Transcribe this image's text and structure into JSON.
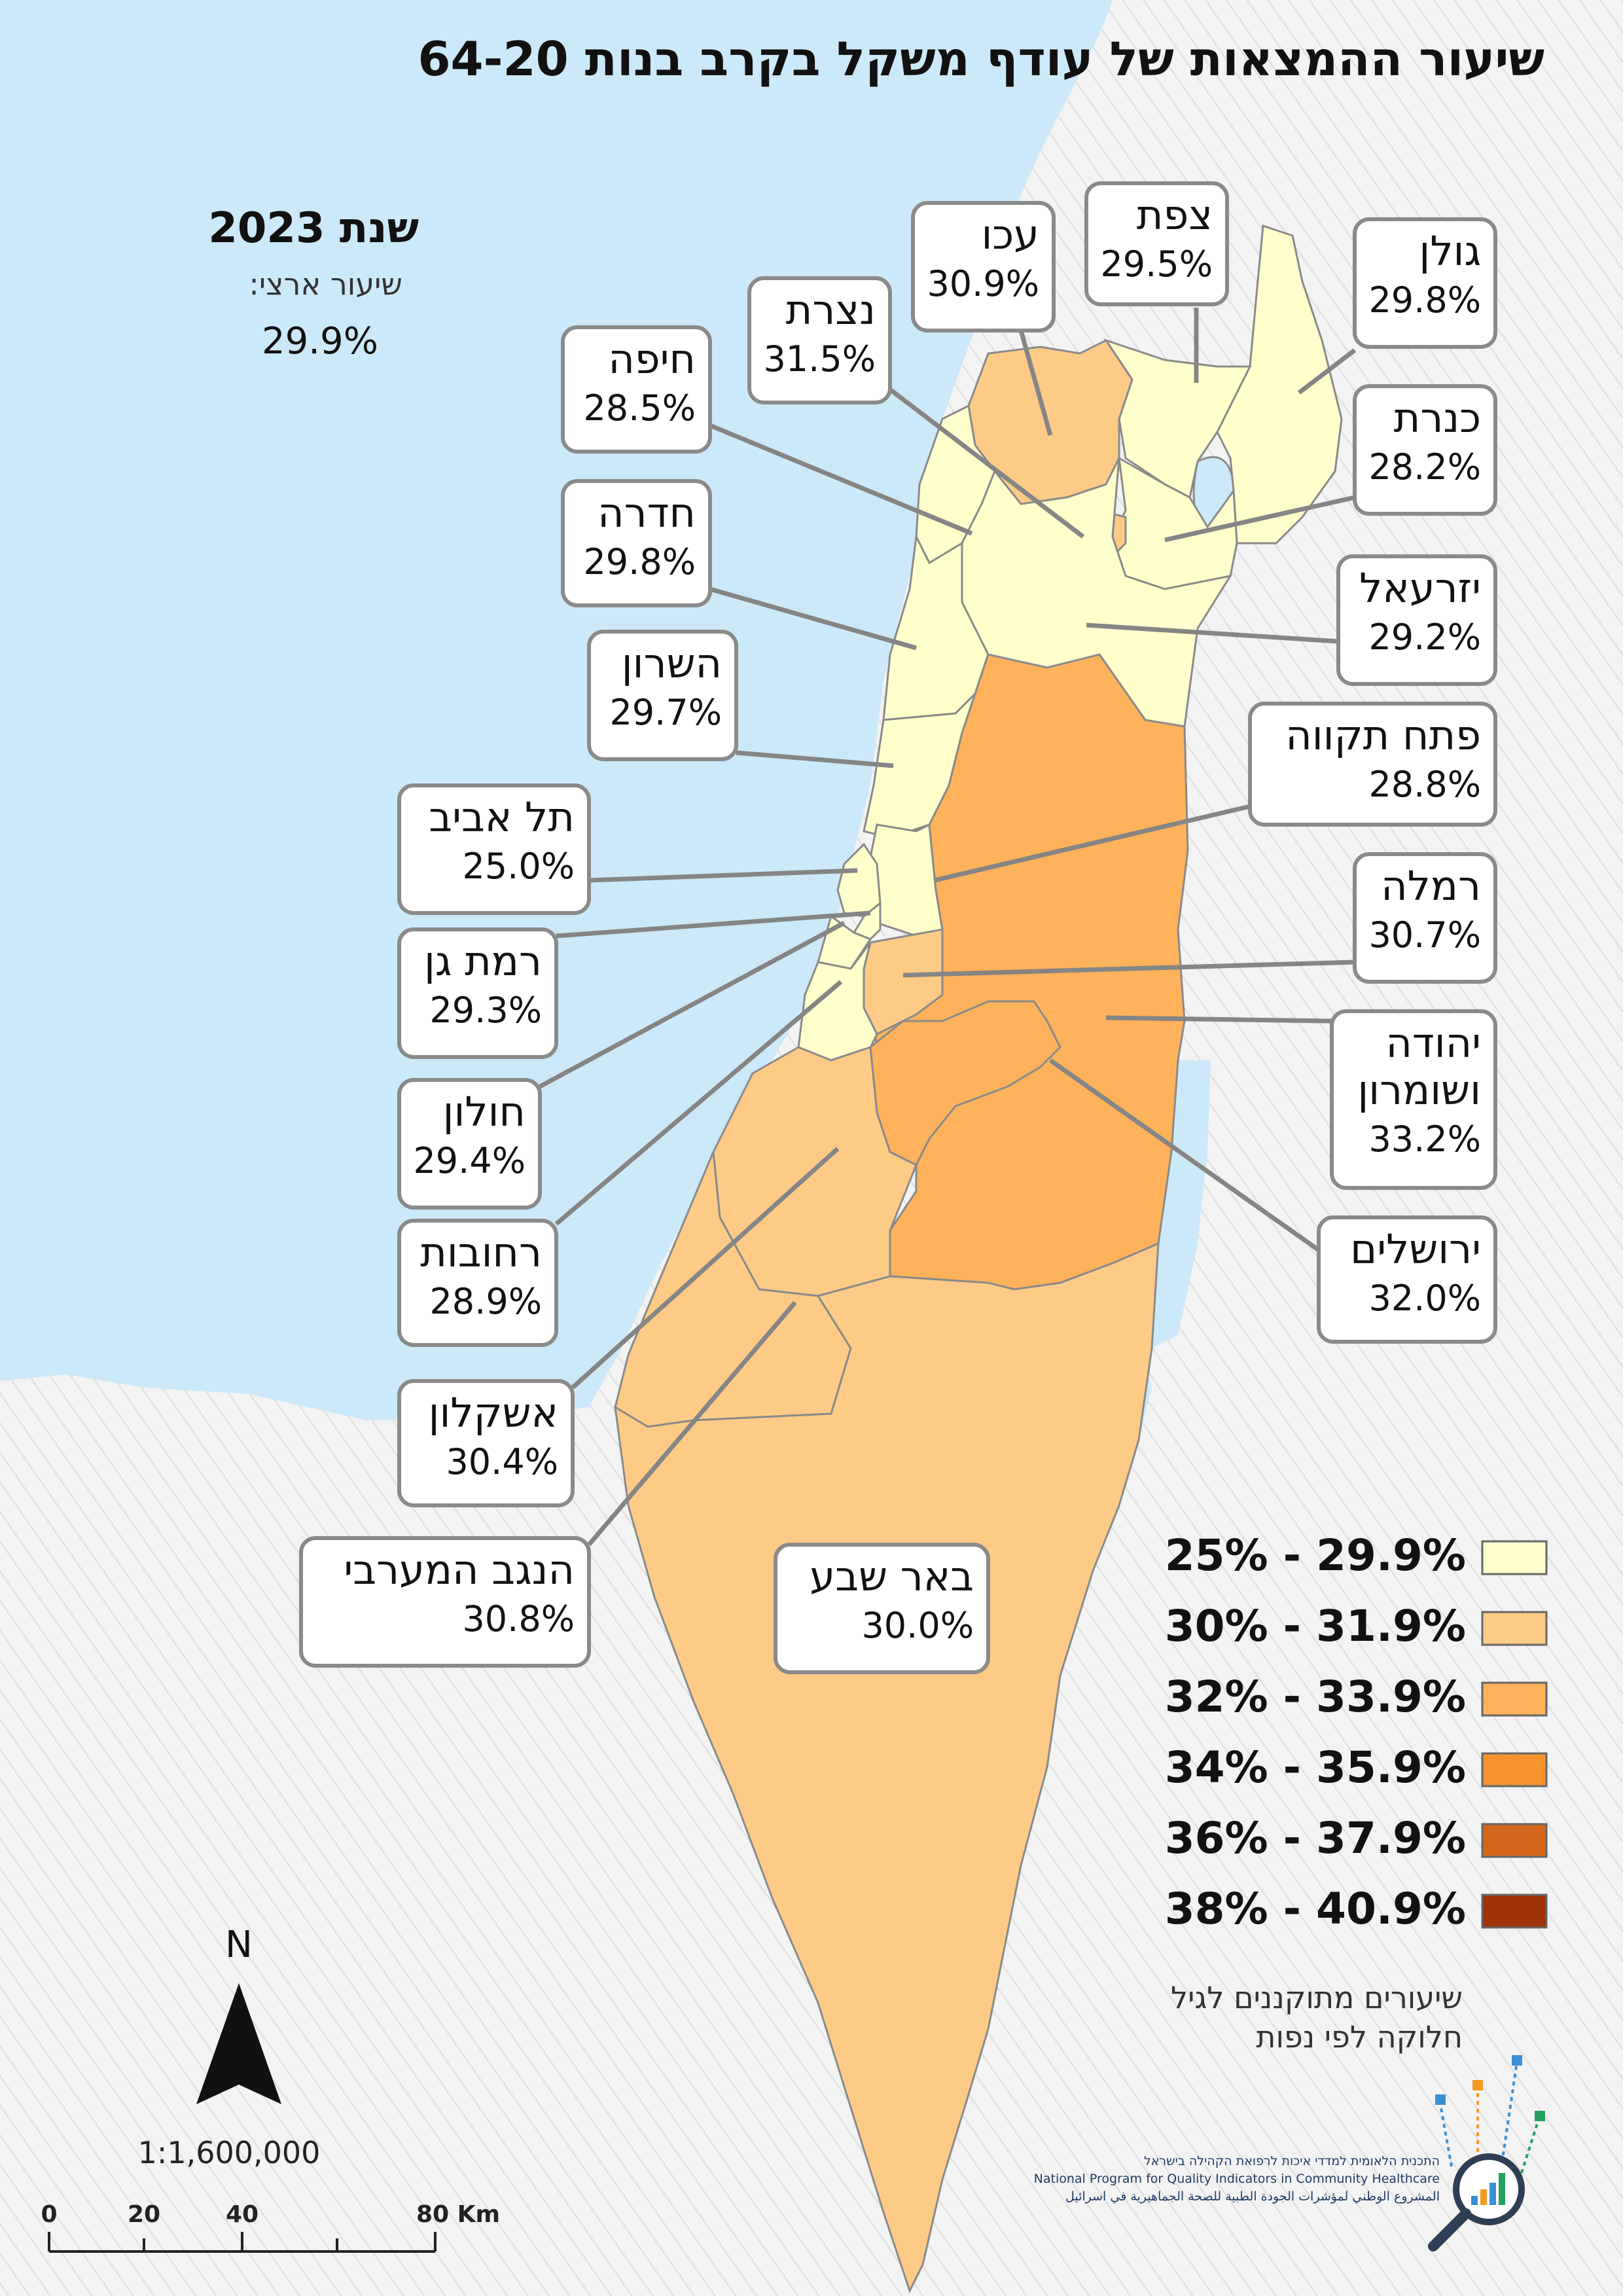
{
  "title": "שיעור ההמצאות של עודף משקל בקרב בנות 64-20",
  "year_label": "שנת 2023",
  "national_label": "שיעור ארצי:",
  "national_value": "29.9%",
  "districts": [
    {
      "id": "golan",
      "name": "גולן",
      "value": "29.8%",
      "rate": 29.8
    },
    {
      "id": "safed",
      "name": "צפת",
      "value": "29.5%",
      "rate": 29.5
    },
    {
      "id": "acre",
      "name": "עכו",
      "value": "30.9%",
      "rate": 30.9
    },
    {
      "id": "nazareth",
      "name": "נצרת",
      "value": "31.5%",
      "rate": 31.5
    },
    {
      "id": "haifa",
      "name": "חיפה",
      "value": "28.5%",
      "rate": 28.5
    },
    {
      "id": "kinneret",
      "name": "כנרת",
      "value": "28.2%",
      "rate": 28.2
    },
    {
      "id": "hadera",
      "name": "חדרה",
      "value": "29.8%",
      "rate": 29.8
    },
    {
      "id": "jezreel",
      "name": "יזרעאל",
      "value": "29.2%",
      "rate": 29.2
    },
    {
      "id": "sharon",
      "name": "השרון",
      "value": "29.7%",
      "rate": 29.7
    },
    {
      "id": "petah-tikva",
      "name": "פתח תקווה",
      "value": "28.8%",
      "rate": 28.8
    },
    {
      "id": "tel-aviv",
      "name": "תל אביב",
      "value": "25.0%",
      "rate": 25.0
    },
    {
      "id": "ramla",
      "name": "רמלה",
      "value": "30.7%",
      "rate": 30.7
    },
    {
      "id": "ramat-gan",
      "name": "רמת גן",
      "value": "29.3%",
      "rate": 29.3
    },
    {
      "id": "judea-samaria",
      "name": "יהודה ושומרון",
      "name_lines": [
        "יהודה",
        "ושומרון"
      ],
      "value": "33.2%",
      "rate": 33.2
    },
    {
      "id": "holon",
      "name": "חולון",
      "value": "29.4%",
      "rate": 29.4
    },
    {
      "id": "jerusalem",
      "name": "ירושלים",
      "value": "32.0%",
      "rate": 32.0
    },
    {
      "id": "rehovot",
      "name": "רחובות",
      "value": "28.9%",
      "rate": 28.9
    },
    {
      "id": "ashkelon",
      "name": "אשקלון",
      "value": "30.4%",
      "rate": 30.4
    },
    {
      "id": "western-negev",
      "name": "הנגב המערבי",
      "value": "30.8%",
      "rate": 30.8
    },
    {
      "id": "beersheba",
      "name": "באר שבע",
      "value": "30.0%",
      "rate": 30.0
    }
  ],
  "legend": [
    {
      "label": "25% - 29.9%",
      "color": "#ffffcc"
    },
    {
      "label": "30% - 31.9%",
      "color": "#fecb87"
    },
    {
      "label": "32% - 33.9%",
      "color": "#fdb25b"
    },
    {
      "label": "34% - 35.9%",
      "color": "#f7932e"
    },
    {
      "label": "36% - 37.9%",
      "color": "#d4661c"
    },
    {
      "label": "38% - 40.9%",
      "color": "#9e3305"
    }
  ],
  "note_lines": [
    "שיעורים מתוקננים לגיל",
    "חלוקה לפי נפות"
  ],
  "north_arrow_label": "N",
  "scale_text": "1:1,600,000",
  "scale_bar": {
    "ticks": [
      "0",
      "20",
      "40",
      "80 Km"
    ]
  },
  "logo": {
    "line_he": "התכנית הלאומית למדדי איכות לרפואת הקהילה בישראל",
    "line_en": "National Program for Quality Indicators in Community Healthcare",
    "line_ar": "المشروع الوطني لمؤشرات الجودة الطبية للصحة الجماهيرية في اسرائيل"
  },
  "colors": {
    "sea": "#cce9f9",
    "land_outside": "#f1f1f1",
    "hatch": "#dcdcdc",
    "border": "#8a8a8a"
  }
}
